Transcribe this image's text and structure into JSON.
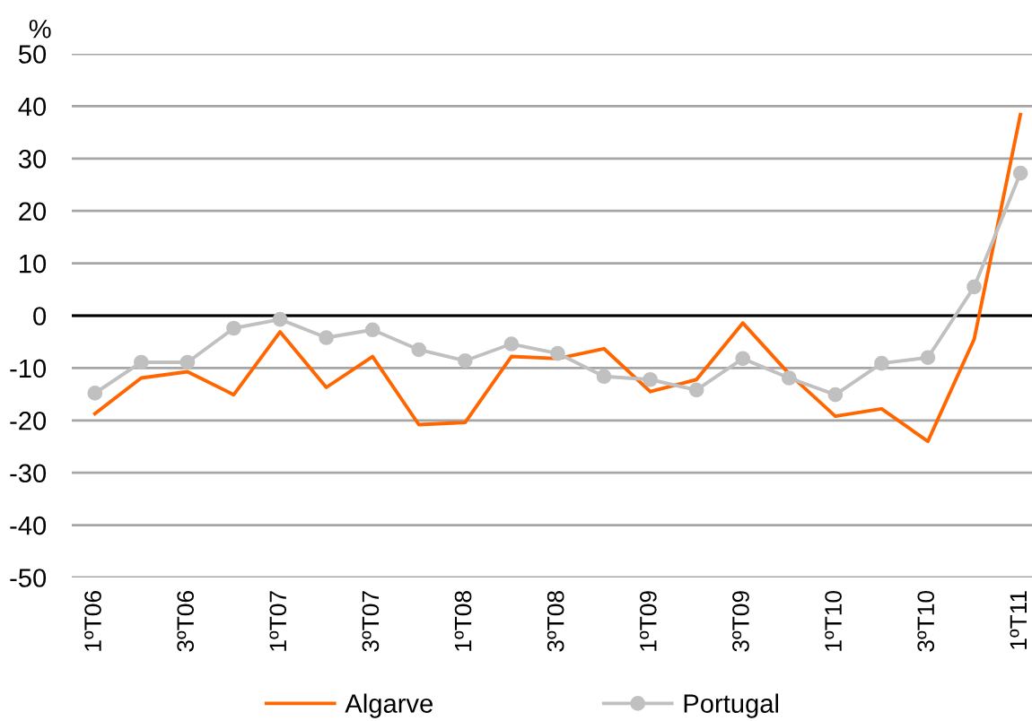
{
  "chart_data": {
    "type": "line",
    "ylabel": "%",
    "categories": [
      "1ºT06",
      null,
      "3ºT06",
      null,
      "1ºT07",
      null,
      "3ºT07",
      null,
      "1ºT08",
      null,
      "3ºT08",
      null,
      "1ºT09",
      null,
      "3ºT09",
      null,
      "1ºT10",
      null,
      "3ºT10",
      null,
      "1ºT11"
    ],
    "series": [
      {
        "name": "Algarve",
        "color": "#ff6600",
        "marker": "none",
        "values": [
          -18.7,
          -11.9,
          -10.7,
          -15.1,
          -3.1,
          -13.7,
          -7.8,
          -20.8,
          -20.4,
          -7.8,
          -8.2,
          -6.3,
          -14.5,
          -12.2,
          -1.4,
          -11.1,
          -19.2,
          -17.8,
          -24.0,
          -4.5,
          38.4
        ]
      },
      {
        "name": "Portugal",
        "color": "#c0c0c0",
        "marker": "circle",
        "values": [
          -14.8,
          -8.9,
          -8.9,
          -2.4,
          -0.7,
          -4.2,
          -2.7,
          -6.5,
          -8.6,
          -5.4,
          -7.2,
          -11.6,
          -12.2,
          -14.2,
          -8.2,
          -11.9,
          -15.1,
          -9.1,
          -8.0,
          5.5,
          27.2
        ]
      }
    ],
    "ylim": [
      -50,
      50
    ],
    "yticks": [
      -50,
      -40,
      -30,
      -20,
      -10,
      0,
      10,
      20,
      30,
      40,
      50
    ],
    "grid": "y",
    "legend": "bottom",
    "ref_lines": [
      {
        "axis": "y",
        "value": 0,
        "color": "#000000"
      }
    ]
  }
}
